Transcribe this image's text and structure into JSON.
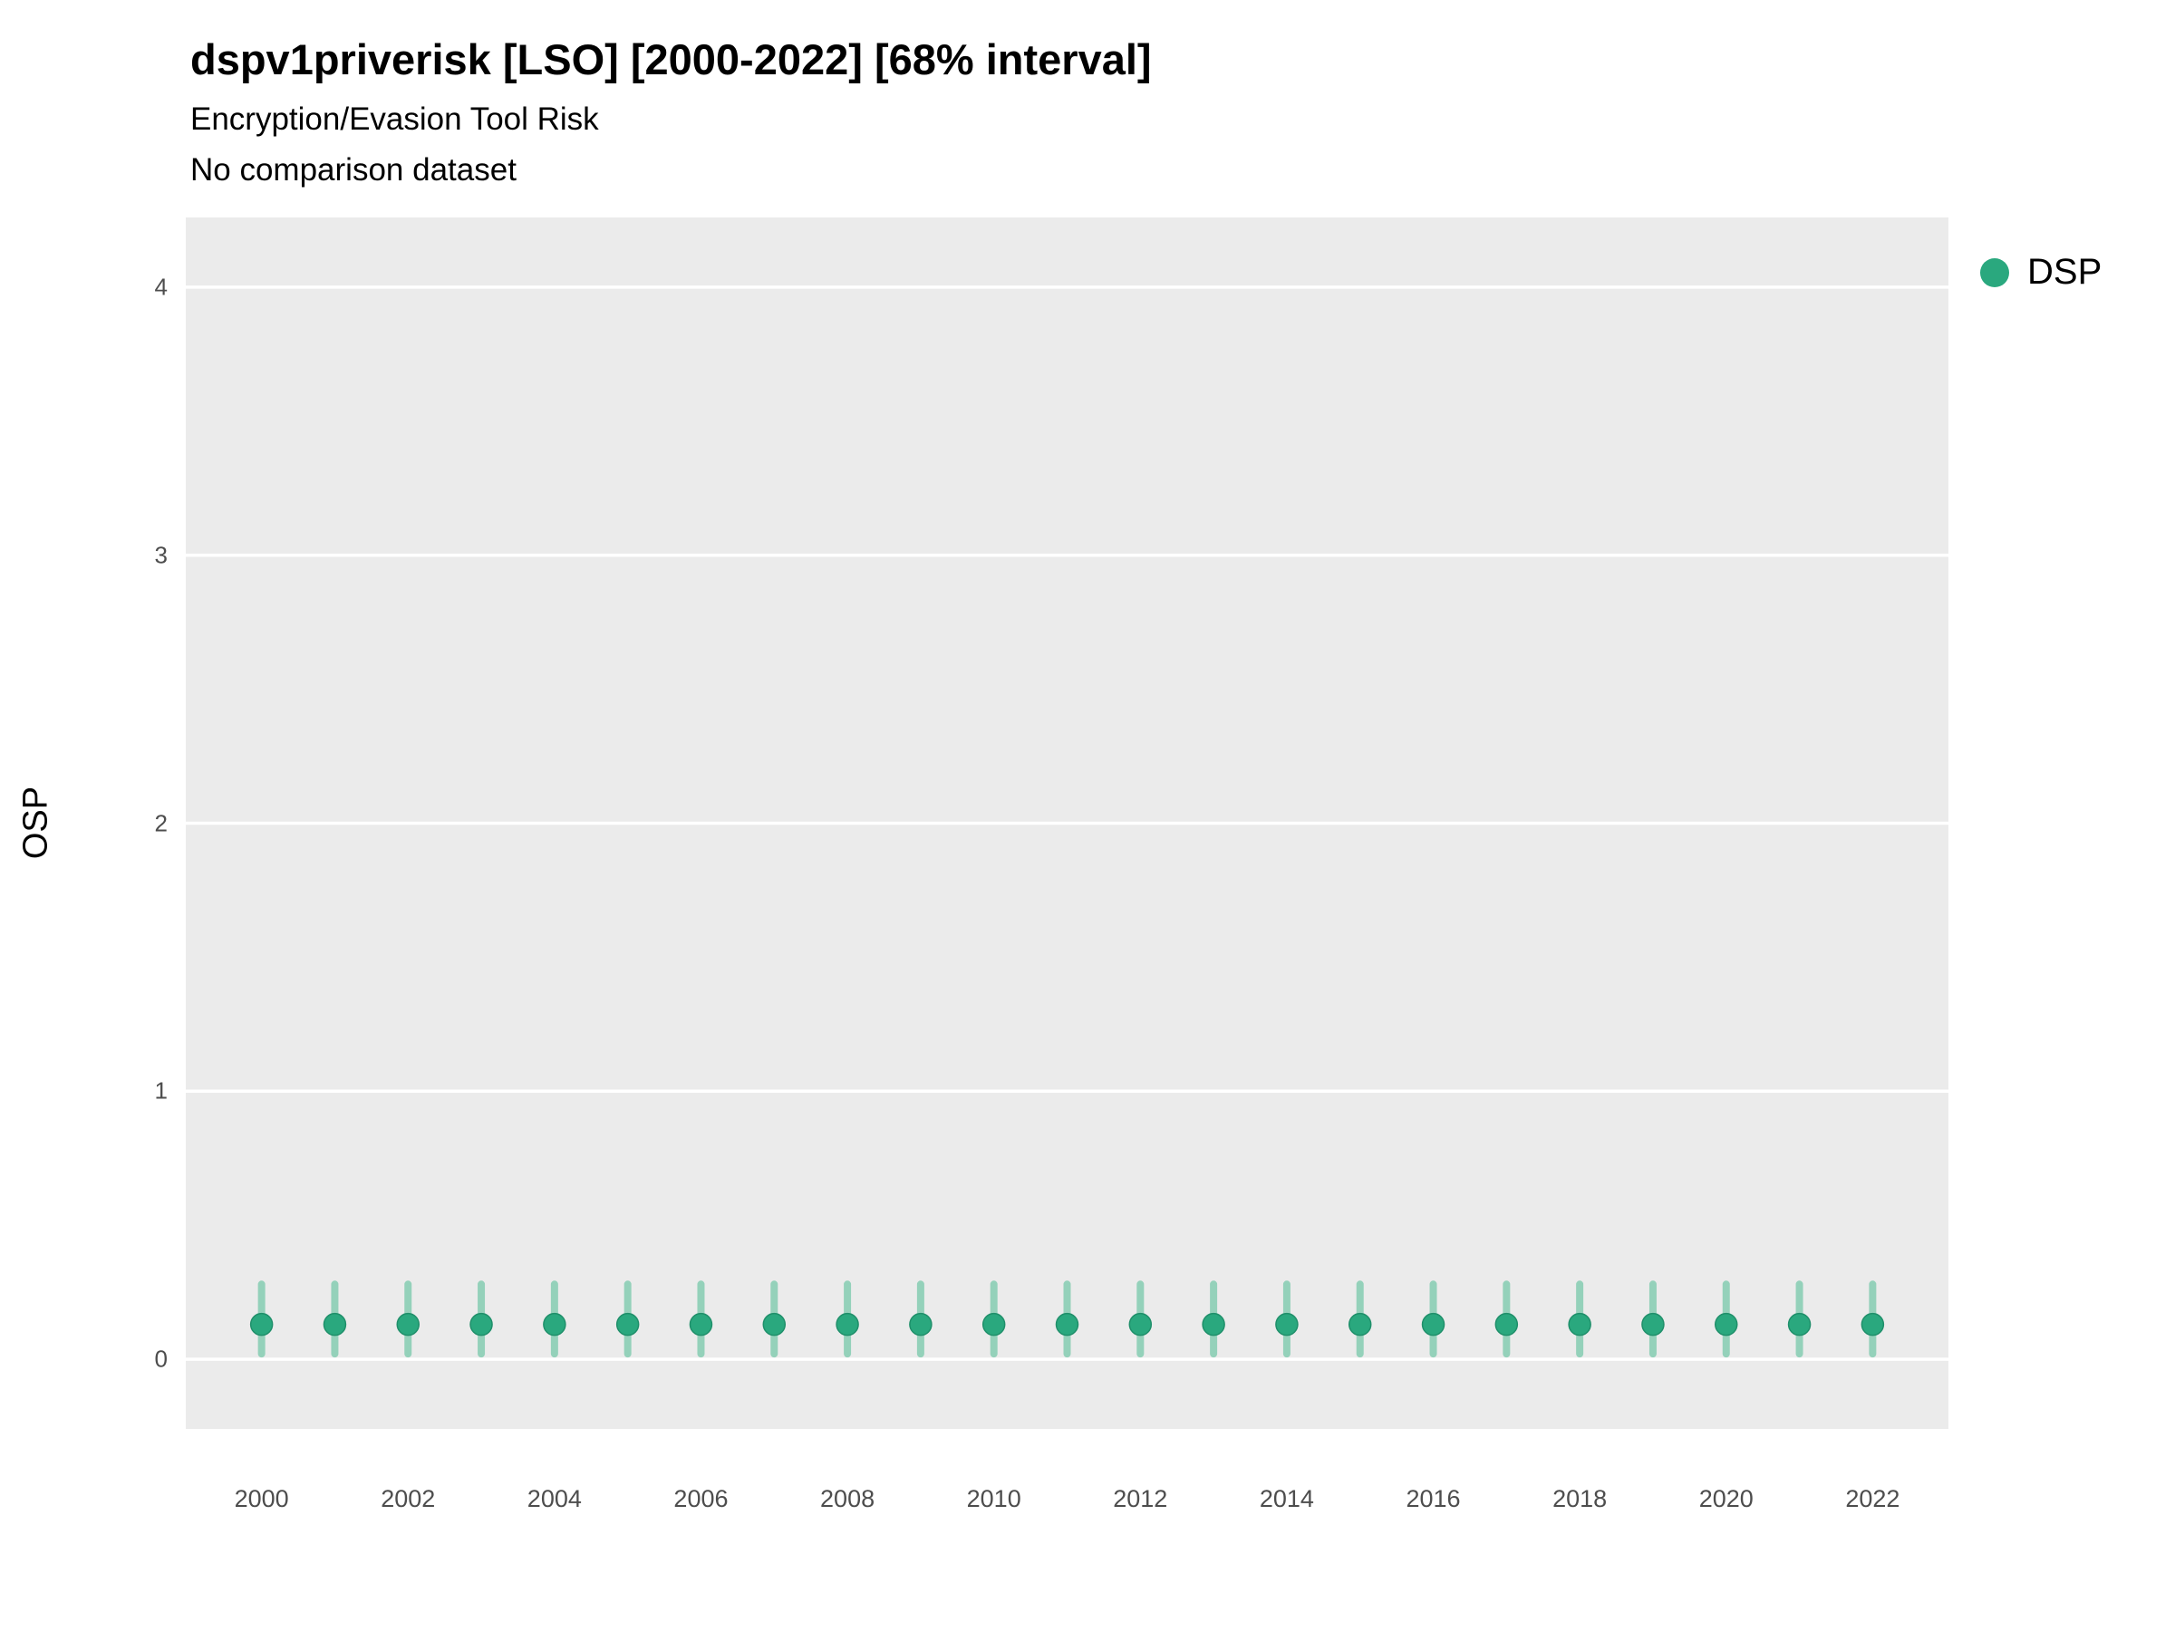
{
  "title": "dspv1priverisk [LSO] [2000-2022] [68% interval]",
  "subtitle": "Encryption/Evasion Tool Risk",
  "subtitle2": "No comparison dataset",
  "legend": {
    "items": [
      {
        "label": "DSP",
        "color": "#2aa87e"
      }
    ]
  },
  "chart_data": {
    "type": "scatter",
    "title": "dspv1priverisk [LSO] [2000-2022] [68% interval]",
    "subtitle": "Encryption/Evasion Tool Risk",
    "note": "No comparison dataset",
    "xlabel": "",
    "ylabel": "OSP",
    "x": [
      2000,
      2001,
      2002,
      2003,
      2004,
      2005,
      2006,
      2007,
      2008,
      2009,
      2010,
      2011,
      2012,
      2013,
      2014,
      2015,
      2016,
      2017,
      2018,
      2019,
      2020,
      2021,
      2022
    ],
    "series": [
      {
        "name": "DSP",
        "values": [
          0.13,
          0.13,
          0.13,
          0.13,
          0.13,
          0.13,
          0.13,
          0.13,
          0.13,
          0.13,
          0.13,
          0.13,
          0.13,
          0.13,
          0.13,
          0.13,
          0.13,
          0.13,
          0.13,
          0.13,
          0.13,
          0.13,
          0.13
        ],
        "interval_low": [
          0.02,
          0.02,
          0.02,
          0.02,
          0.02,
          0.02,
          0.02,
          0.02,
          0.02,
          0.02,
          0.02,
          0.02,
          0.02,
          0.02,
          0.02,
          0.02,
          0.02,
          0.02,
          0.02,
          0.02,
          0.02,
          0.02,
          0.02
        ],
        "interval_high": [
          0.28,
          0.28,
          0.28,
          0.28,
          0.28,
          0.28,
          0.28,
          0.28,
          0.28,
          0.28,
          0.28,
          0.28,
          0.28,
          0.28,
          0.28,
          0.28,
          0.28,
          0.28,
          0.28,
          0.28,
          0.28,
          0.28,
          0.28
        ]
      }
    ],
    "interval_label": "68% interval",
    "ylim": [
      -0.26,
      4.26
    ],
    "yticks": [
      0,
      1,
      2,
      3,
      4
    ],
    "xticks": [
      2000,
      2002,
      2004,
      2006,
      2008,
      2010,
      2012,
      2014,
      2016,
      2018,
      2020,
      2022
    ],
    "grid": true,
    "legend_position": "right",
    "panel_background": "#EBEBEB",
    "gridline_color": "#FFFFFF",
    "point_color": "#2aa87e",
    "point_stroke": "#1f8f6a",
    "interval_color": "#86cdb2"
  }
}
